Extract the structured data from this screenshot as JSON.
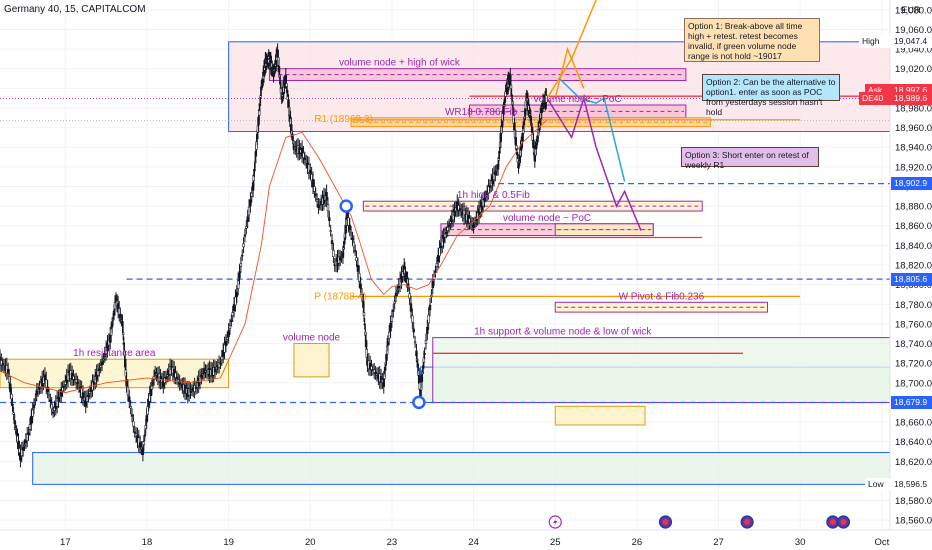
{
  "header": {
    "title": "Germany 40, 15, CAPITALCOM",
    "currency": "EUR"
  },
  "chart_data": {
    "type": "candlestick",
    "title": "Germany 40, 15, CAPITALCOM",
    "ylim": [
      18550,
      19090
    ],
    "y_ticks": [
      18560,
      18580,
      18600,
      18620,
      18640,
      18660,
      18680,
      18700,
      18720,
      18740,
      18760,
      18780,
      18800,
      18820,
      18840,
      18860,
      18880,
      18900,
      18920,
      18940,
      18960,
      18980,
      19000,
      19020,
      19040,
      19060,
      19080
    ],
    "x_ticks": [
      "17",
      "18",
      "19",
      "20",
      "23",
      "24",
      "25",
      "26",
      "27",
      "30",
      "Oct"
    ],
    "x_tick_pos": [
      0.5,
      1.5,
      2.5,
      3.5,
      4.5,
      5.5,
      6.5,
      7.5,
      8.5,
      9.5,
      10.5
    ],
    "x_range": [
      -0.3,
      10.6
    ],
    "price_labels": [
      {
        "name": "High",
        "value": 19047.4,
        "text": "19,047.4",
        "color": "#ffffff",
        "textcolor": "#131722"
      },
      {
        "name": "Ask",
        "value": 18997.6,
        "text": "18,997.6",
        "color": "#f23645",
        "textcolor": "#ffffff"
      },
      {
        "name": "",
        "value": 18989.9,
        "text": "18,989.9",
        "color": "#f23645",
        "textcolor": "#ffffff"
      },
      {
        "name": "Bid",
        "value": 18989.6,
        "text": "18,989.6",
        "color": "#2962ff",
        "textcolor": "#ffffff"
      },
      {
        "name": "DE40",
        "value": 18989.6,
        "text": "18,989.6",
        "color": "#f23645",
        "textcolor": "#ffffff"
      },
      {
        "name": "",
        "value": 18902.9,
        "text": "18,902.9",
        "color": "#2962ff",
        "textcolor": "#ffffff"
      },
      {
        "name": "",
        "value": 18805.6,
        "text": "18,805.6",
        "color": "#2962ff",
        "textcolor": "#ffffff"
      },
      {
        "name": "",
        "value": 18679.9,
        "text": "18,679.9",
        "color": "#2962ff",
        "textcolor": "#ffffff"
      },
      {
        "name": "Low",
        "value": 18596.5,
        "text": "18,596.5",
        "color": "#ffffff",
        "textcolor": "#131722"
      }
    ],
    "close_path": [
      [
        -0.3,
        18722
      ],
      [
        -0.2,
        18712
      ],
      [
        -0.12,
        18660
      ],
      [
        -0.05,
        18625
      ],
      [
        0.05,
        18648
      ],
      [
        0.15,
        18690
      ],
      [
        0.25,
        18705
      ],
      [
        0.35,
        18670
      ],
      [
        0.45,
        18690
      ],
      [
        0.55,
        18710
      ],
      [
        0.65,
        18700
      ],
      [
        0.75,
        18680
      ],
      [
        0.85,
        18700
      ],
      [
        0.95,
        18720
      ],
      [
        1.05,
        18745
      ],
      [
        1.12,
        18785
      ],
      [
        1.2,
        18760
      ],
      [
        1.25,
        18700
      ],
      [
        1.35,
        18650
      ],
      [
        1.45,
        18630
      ],
      [
        1.52,
        18680
      ],
      [
        1.6,
        18710
      ],
      [
        1.7,
        18700
      ],
      [
        1.8,
        18715
      ],
      [
        1.9,
        18700
      ],
      [
        2.0,
        18690
      ],
      [
        2.1,
        18695
      ],
      [
        2.2,
        18712
      ],
      [
        2.3,
        18710
      ],
      [
        2.4,
        18720
      ],
      [
        2.5,
        18750
      ],
      [
        2.6,
        18790
      ],
      [
        2.7,
        18850
      ],
      [
        2.8,
        18900
      ],
      [
        2.85,
        18950
      ],
      [
        2.9,
        19000
      ],
      [
        2.95,
        19025
      ],
      [
        3.0,
        19030
      ],
      [
        3.05,
        19015
      ],
      [
        3.1,
        19035
      ],
      [
        3.15,
        18990
      ],
      [
        3.2,
        19010
      ],
      [
        3.25,
        18970
      ],
      [
        3.3,
        18940
      ],
      [
        3.4,
        18935
      ],
      [
        3.5,
        18915
      ],
      [
        3.6,
        18880
      ],
      [
        3.7,
        18890
      ],
      [
        3.8,
        18820
      ],
      [
        3.9,
        18830
      ],
      [
        3.95,
        18870
      ],
      [
        4.05,
        18835
      ],
      [
        4.15,
        18780
      ],
      [
        4.2,
        18720
      ],
      [
        4.3,
        18710
      ],
      [
        4.4,
        18700
      ],
      [
        4.45,
        18740
      ],
      [
        4.55,
        18790
      ],
      [
        4.65,
        18815
      ],
      [
        4.7,
        18800
      ],
      [
        4.8,
        18730
      ],
      [
        4.85,
        18690
      ],
      [
        4.9,
        18730
      ],
      [
        5.0,
        18800
      ],
      [
        5.1,
        18840
      ],
      [
        5.2,
        18860
      ],
      [
        5.3,
        18880
      ],
      [
        5.4,
        18870
      ],
      [
        5.5,
        18860
      ],
      [
        5.6,
        18880
      ],
      [
        5.7,
        18900
      ],
      [
        5.8,
        18920
      ],
      [
        5.85,
        18965
      ],
      [
        5.9,
        19000
      ],
      [
        5.95,
        19010
      ],
      [
        6.0,
        18960
      ],
      [
        6.05,
        18920
      ],
      [
        6.1,
        18950
      ],
      [
        6.15,
        18990
      ],
      [
        6.2,
        18970
      ],
      [
        6.25,
        18930
      ],
      [
        6.3,
        18960
      ],
      [
        6.35,
        18985
      ],
      [
        6.4,
        18990
      ]
    ],
    "ma_path": [
      [
        -0.3,
        18712
      ],
      [
        0.0,
        18700
      ],
      [
        0.5,
        18690
      ],
      [
        1.0,
        18700
      ],
      [
        1.5,
        18705
      ],
      [
        2.0,
        18700
      ],
      [
        2.4,
        18705
      ],
      [
        2.7,
        18760
      ],
      [
        2.9,
        18840
      ],
      [
        3.0,
        18900
      ],
      [
        3.2,
        18950
      ],
      [
        3.4,
        18955
      ],
      [
        3.6,
        18930
      ],
      [
        3.8,
        18900
      ],
      [
        4.0,
        18870
      ],
      [
        4.1,
        18845
      ],
      [
        4.25,
        18805
      ],
      [
        4.4,
        18790
      ],
      [
        4.5,
        18798
      ],
      [
        4.65,
        18800
      ],
      [
        4.8,
        18795
      ],
      [
        4.95,
        18800
      ],
      [
        5.1,
        18820
      ],
      [
        5.3,
        18850
      ],
      [
        5.5,
        18865
      ],
      [
        5.7,
        18880
      ],
      [
        5.9,
        18920
      ],
      [
        6.1,
        18945
      ],
      [
        6.3,
        18960
      ],
      [
        6.4,
        18968
      ]
    ],
    "zones": [
      {
        "label": "1h resistance area",
        "x0": -0.3,
        "x1": 2.5,
        "y0": 18695,
        "y1": 18724,
        "fill": "#fdf3c4",
        "stroke": "#d4a017"
      },
      {
        "label": "",
        "x0": 2.5,
        "x1": 10.6,
        "y0": 18956,
        "y1": 19047.4,
        "fill": "#fbe1e6",
        "stroke": "#2962ff"
      },
      {
        "label": "",
        "x0": 0.1,
        "x1": 10.6,
        "y0": 18596.5,
        "y1": 18629,
        "fill": "#e3f2e6",
        "stroke": "#2962ff"
      },
      {
        "label": "",
        "x0": 4.85,
        "x1": 10.6,
        "y0": 18679.9,
        "y1": 18716,
        "fill": "#e3f2e6",
        "stroke": "#2962ff"
      },
      {
        "label": "1h support & volume node & low of wick",
        "x0": 5.0,
        "x1": 10.6,
        "y0": 18679.9,
        "y1": 18746,
        "fill": "#e8f5e9",
        "stroke": "#9c27b0"
      },
      {
        "label": "volume node + high of wick",
        "x0": 3.0,
        "x1": 8.1,
        "y0": 19008,
        "y1": 19020,
        "fill": "#f8bbd0",
        "stroke": "#9c27b0"
      },
      {
        "label": "volume node ~ PoC",
        "x0": 5.45,
        "x1": 8.1,
        "y0": 18970,
        "y1": 18983,
        "fill": "#f8bbd0",
        "stroke": "#9c27b0"
      },
      {
        "label": "WR18 0.786 Fib",
        "x0": 4.0,
        "x1": 8.4,
        "y0": 18961,
        "y1": 18970,
        "fill": "#ffcc99",
        "stroke": "#ff9800"
      },
      {
        "label": "1h high & 0.5Fib",
        "x0": 4.15,
        "x1": 8.3,
        "y0": 18875,
        "y1": 18885,
        "fill": "#fff0c0",
        "stroke": "#9c27b0"
      },
      {
        "label": "volume node ~ PoC",
        "x0": 5.1,
        "x1": 7.7,
        "y0": 18850,
        "y1": 18862,
        "fill": "#f8bbd0",
        "stroke": "#9c27b0"
      },
      {
        "label": "",
        "x0": 6.5,
        "x1": 7.7,
        "y0": 18850,
        "y1": 18862,
        "fill": "#fff0c0",
        "stroke": "#9c27b0"
      },
      {
        "label": "W Pivot & Fib0.236",
        "x0": 6.5,
        "x1": 9.1,
        "y0": 18772,
        "y1": 18782,
        "fill": "#fff0c0",
        "stroke": "#9c27b0"
      },
      {
        "label": "volume node",
        "x0": 3.3,
        "x1": 3.73,
        "y0": 18706,
        "y1": 18740,
        "fill": "#fff0c0",
        "stroke": "#d4a017"
      },
      {
        "label": "",
        "x0": 6.5,
        "x1": 7.6,
        "y0": 18657,
        "y1": 18676,
        "fill": "#fff0c0",
        "stroke": "#d4a017"
      }
    ],
    "hlines": [
      {
        "value": 18902.9,
        "x0": 5.8,
        "x1": 10.6,
        "color": "#2962ff",
        "dash": true
      },
      {
        "value": 18805.6,
        "x0": 1.25,
        "x1": 10.6,
        "color": "#2962ff",
        "dash": true
      },
      {
        "value": 18679.9,
        "x0": -0.3,
        "x1": 10.6,
        "color": "#2962ff",
        "dash": true
      },
      {
        "value": 18989.6,
        "x0": -0.3,
        "x1": 10.6,
        "color": "#9c27b0",
        "dash": "dot"
      },
      {
        "value": 18968,
        "x0": 4.0,
        "x1": 9.5,
        "color": "#ff9800",
        "dash": false
      },
      {
        "value": 18788,
        "x0": 4.0,
        "x1": 9.5,
        "color": "#ff9800",
        "dash": false
      },
      {
        "value": 18992,
        "x0": 5.45,
        "x1": 10.6,
        "color": "#f23645",
        "dash": false
      },
      {
        "value": 18848,
        "x0": 5.45,
        "x1": 8.3,
        "color": "#f23645",
        "dash": false
      },
      {
        "value": 18730,
        "x0": 5.0,
        "x1": 8.8,
        "color": "#f23645",
        "dash": false
      },
      {
        "value": 18967,
        "x0": -0.3,
        "x1": 10.6,
        "color": "#90a4ae",
        "dash": "dot"
      }
    ],
    "pivot_labels": [
      {
        "text": "R1 (18969.3)",
        "x": 3.55,
        "value": 18969.3
      },
      {
        "text": "P (18788.4)",
        "x": 3.55,
        "value": 18788.4
      }
    ],
    "projections": [
      {
        "color": "#ff9800",
        "points": [
          [
            6.4,
            18990
          ],
          [
            6.55,
            19010
          ],
          [
            6.7,
            19030
          ],
          [
            7.0,
            19090
          ]
        ]
      },
      {
        "color": "#ff9800",
        "points": [
          [
            6.5,
            18990
          ],
          [
            6.65,
            19040
          ],
          [
            6.85,
            19000
          ]
        ]
      },
      {
        "color": "#9c27b0",
        "points": [
          [
            6.4,
            18990
          ],
          [
            6.7,
            18950
          ],
          [
            6.85,
            18990
          ],
          [
            7.0,
            18940
          ],
          [
            7.25,
            18880
          ],
          [
            7.35,
            18895
          ],
          [
            7.55,
            18855
          ]
        ]
      },
      {
        "color": "#29a5dc",
        "points": [
          [
            6.55,
            19010
          ],
          [
            6.8,
            18990
          ],
          [
            7.0,
            18985
          ],
          [
            7.1,
            18990
          ],
          [
            7.35,
            18905
          ]
        ]
      }
    ],
    "circles": [
      {
        "x": 3.94,
        "value": 18880
      },
      {
        "x": 4.83,
        "value": 18680
      }
    ],
    "event_icons": [
      {
        "x": 6.5,
        "kind": "flash"
      },
      {
        "x": 7.85,
        "kind": "flag"
      },
      {
        "x": 8.85,
        "kind": "flag"
      },
      {
        "x": 9.9,
        "kind": "flag"
      },
      {
        "x": 10.03,
        "kind": "flag"
      }
    ]
  },
  "annotations": {
    "option1": "Option 1: Break-above all time high + retest. retest becomes invalid, if green volume node range is not hold ~19017",
    "option2": "Option 2: Can be the alternative to option1. enter as soon as POC from yesterdays session hasn't hold",
    "option3": "Option 3: Short enter on retest of weekly R1"
  },
  "colors": {
    "bull": "#131722",
    "bear": "#131722",
    "ma": "#f4511e",
    "grid": "#f0f3fa"
  }
}
